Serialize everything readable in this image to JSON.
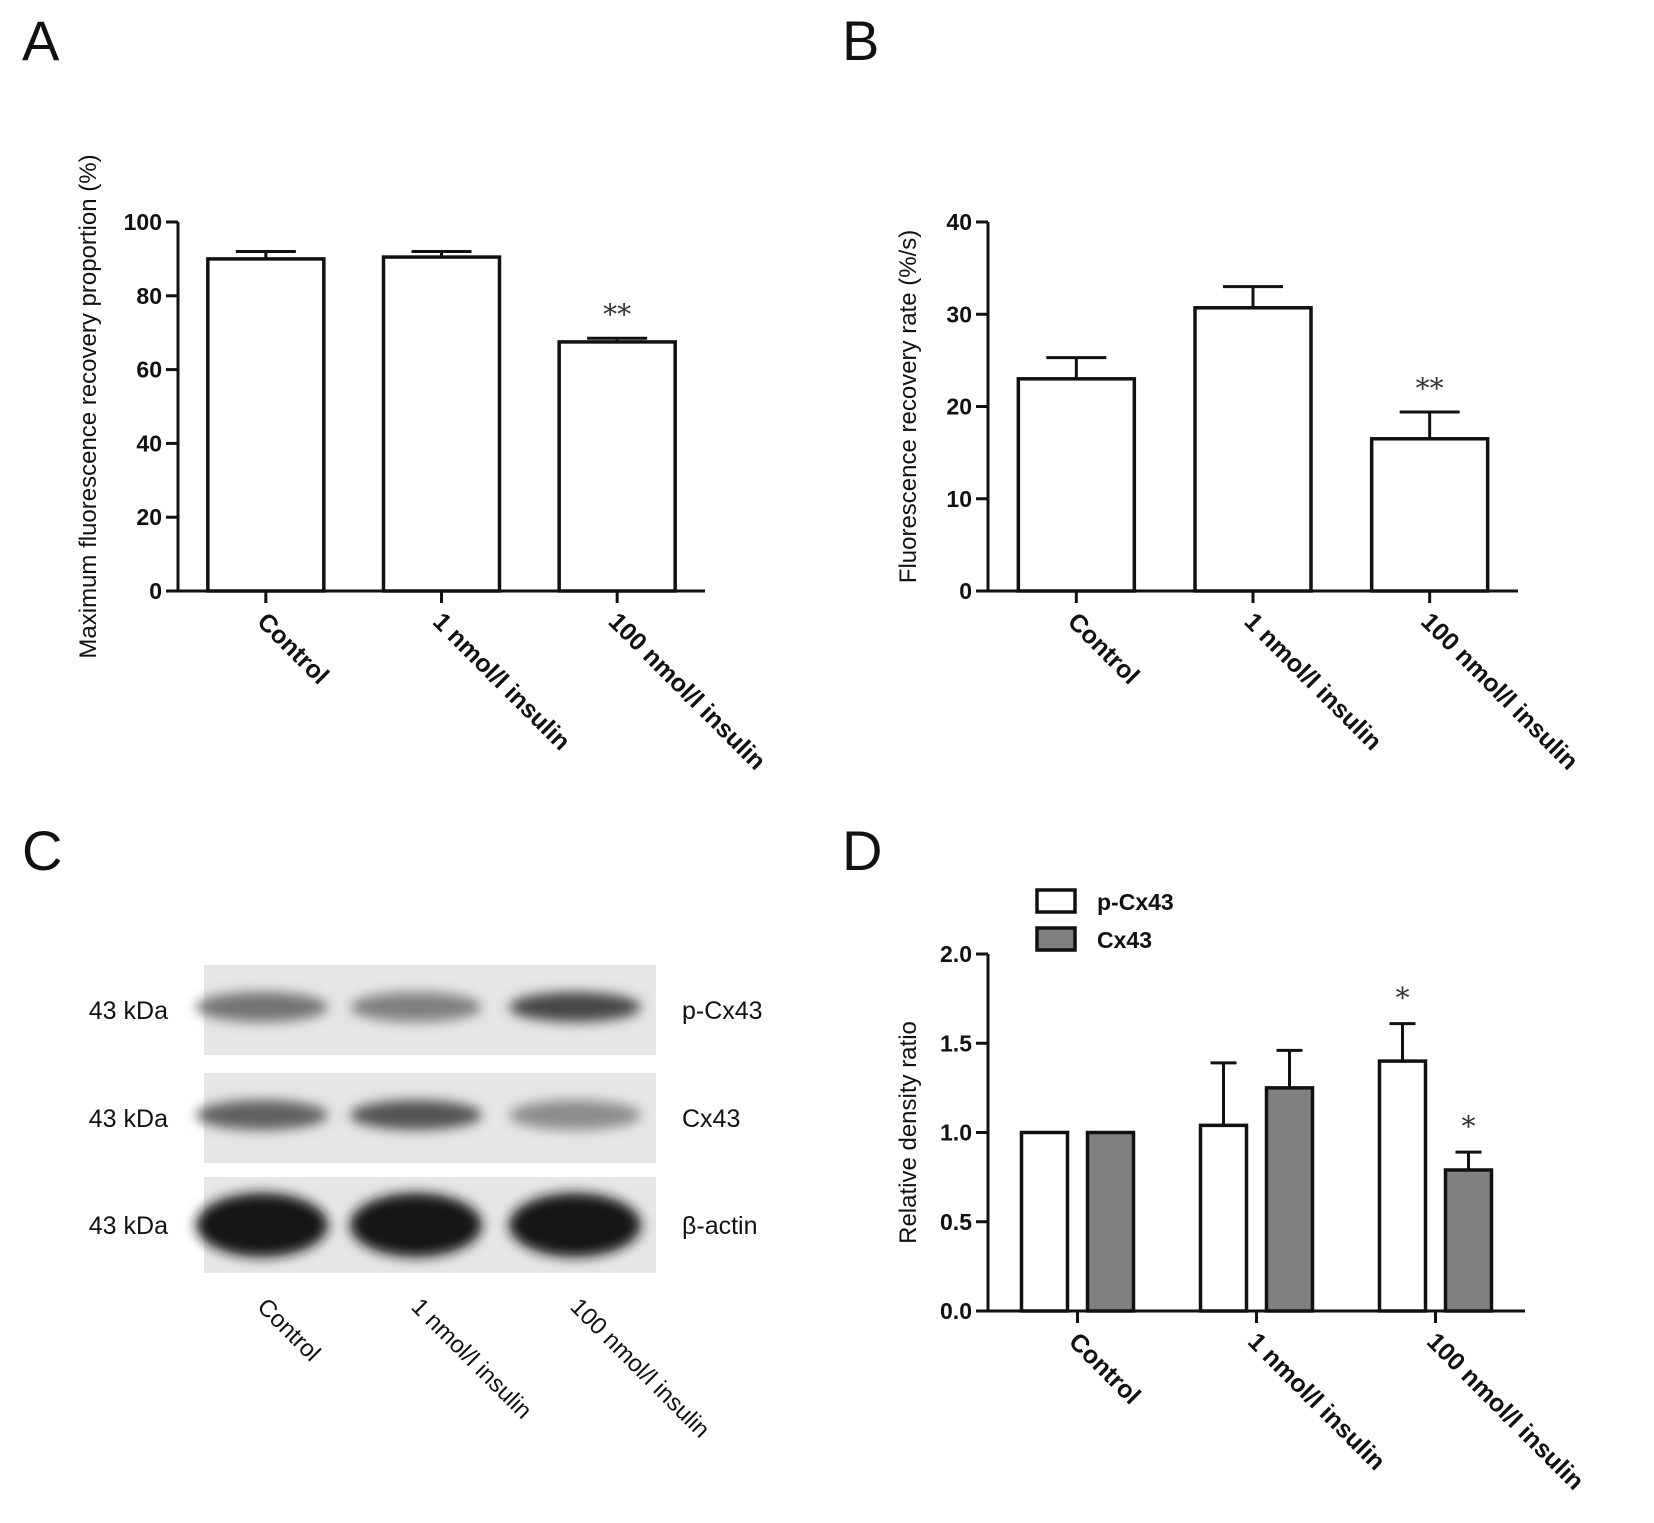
{
  "panels": {
    "A": "A",
    "B": "B",
    "C": "C",
    "D": "D"
  },
  "chart_data": [
    {
      "panel": "A",
      "type": "bar",
      "title": "",
      "xlabel": "",
      "ylabel": "Maximum fluorescence recovery proportion (%)",
      "categories": [
        "Control",
        "1 nmol/l  insulin",
        "100 nmol/l  insulin"
      ],
      "values": [
        90,
        90.5,
        67.5
      ],
      "errors": [
        2,
        1.5,
        1
      ],
      "annotations": [
        "",
        "",
        "**"
      ],
      "ylim": [
        0,
        100
      ],
      "yticks": [
        "0",
        "20",
        "40",
        "60",
        "80",
        "100"
      ],
      "colors": {
        "bar": "#ffffff",
        "edge": "#111111"
      }
    },
    {
      "panel": "B",
      "type": "bar",
      "title": "",
      "xlabel": "",
      "ylabel": "Fluorescence recovery rate (%/s)",
      "categories": [
        "Control",
        "1 nmol/l  insulin",
        "100 nmol/l  insulin"
      ],
      "values": [
        23,
        30.7,
        16.5
      ],
      "errors": [
        2.3,
        2.3,
        2.9
      ],
      "annotations": [
        "",
        "",
        "**"
      ],
      "ylim": [
        0,
        40
      ],
      "yticks": [
        "0",
        "10",
        "20",
        "30",
        "40"
      ],
      "colors": {
        "bar": "#ffffff",
        "edge": "#111111"
      }
    },
    {
      "panel": "D",
      "type": "bar",
      "title": "",
      "xlabel": "",
      "ylabel": "Relative density ratio",
      "categories": [
        "Control",
        "1 nmol/l  insulin",
        "100 nmol/l  insulin"
      ],
      "series": [
        {
          "name": "p-Cx43",
          "values": [
            1.0,
            1.04,
            1.4
          ],
          "errors": [
            0,
            0.35,
            0.21
          ],
          "annotations": [
            "",
            "",
            "*"
          ],
          "color": "#ffffff"
        },
        {
          "name": "Cx43",
          "values": [
            1.0,
            1.25,
            0.79
          ],
          "errors": [
            0,
            0.21,
            0.1
          ],
          "annotations": [
            "",
            "",
            "*"
          ],
          "color": "#808080"
        }
      ],
      "legend": "top-left",
      "ylim": [
        0,
        2.0
      ],
      "yticks": [
        "0.0",
        "0.5",
        "1.0",
        "1.5",
        "2.0"
      ]
    }
  ],
  "blot": {
    "rows": [
      {
        "size": "43 kDa",
        "protein": "p-Cx43",
        "intensity": [
          0.55,
          0.5,
          0.72
        ]
      },
      {
        "size": "43 kDa",
        "protein": "Cx43",
        "intensity": [
          0.62,
          0.68,
          0.45
        ]
      },
      {
        "size": "43 kDa",
        "protein": "β-actin",
        "intensity": [
          0.92,
          0.92,
          0.9
        ]
      }
    ],
    "lanes": [
      "Control",
      "1 nmol/l insulin",
      "100 nmol/l insulin"
    ]
  }
}
